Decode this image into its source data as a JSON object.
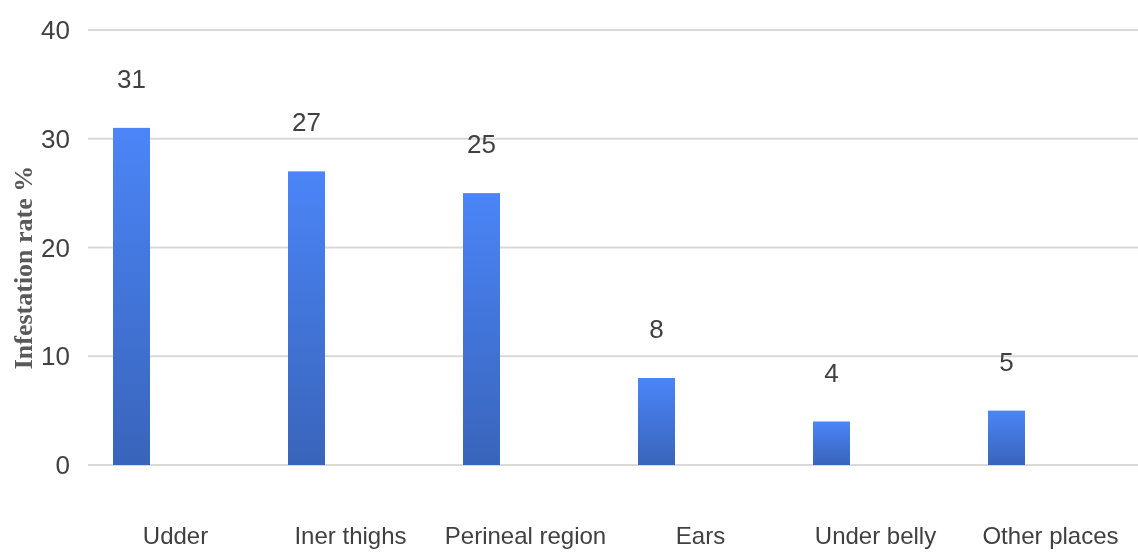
{
  "chart_data": {
    "type": "bar",
    "ylabel": "Infestation rate %",
    "categories": [
      "Udder",
      "Iner thighs",
      "Perineal region",
      "Ears",
      "Under belly",
      "Other places"
    ],
    "values": [
      31,
      27,
      25,
      8,
      4,
      5
    ],
    "color": "#3f6fcf",
    "ylim": [
      0,
      40
    ],
    "yticks": [
      0,
      10,
      20,
      30,
      40
    ],
    "grid": "y",
    "data_labels": true
  }
}
